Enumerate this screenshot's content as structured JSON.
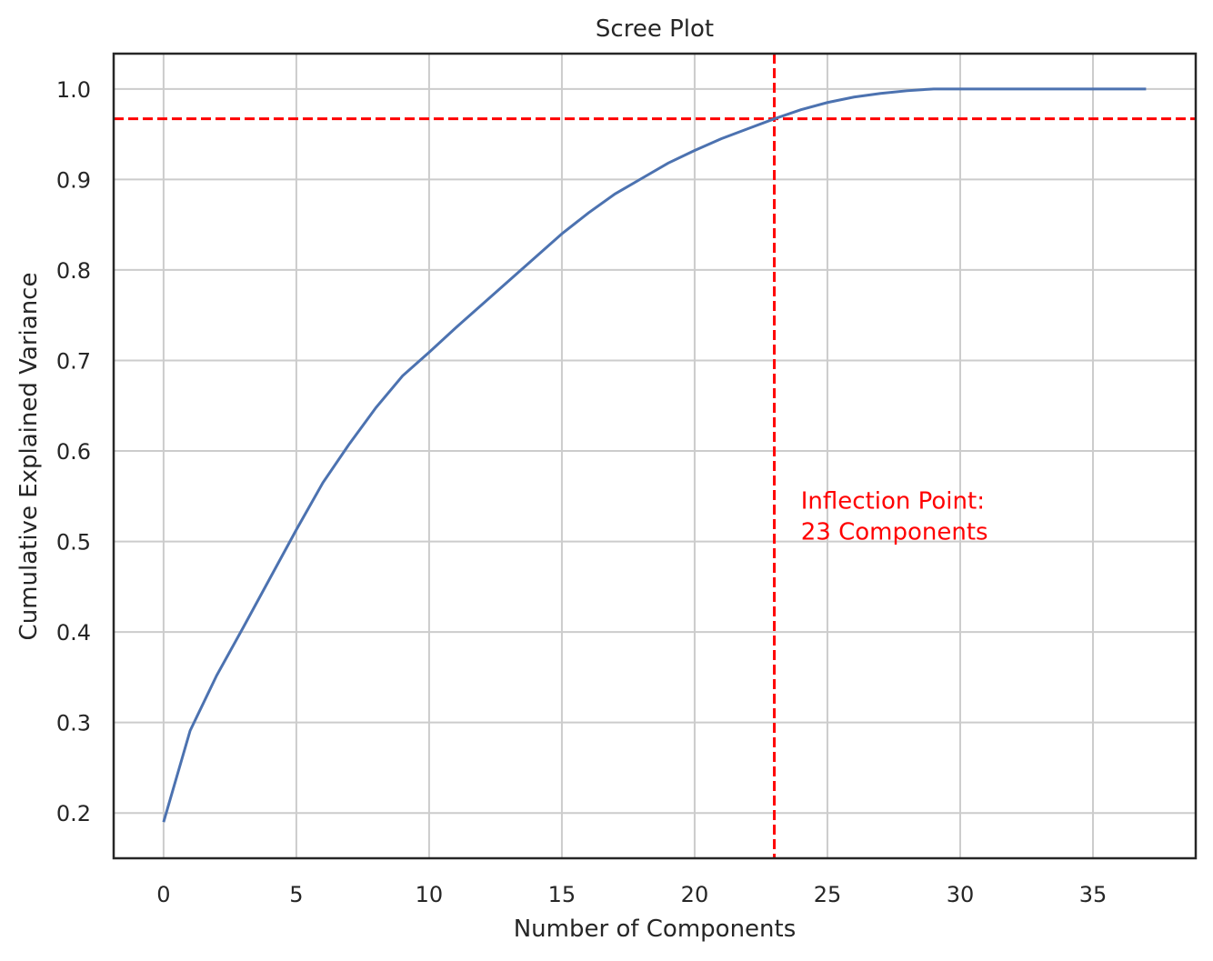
{
  "chart_data": {
    "type": "line",
    "title": "Scree Plot",
    "xlabel": "Number of Components",
    "ylabel": "Cumulative Explained Variance",
    "xlim": [
      -1.88,
      38.87
    ],
    "ylim": [
      0.15,
      1.039
    ],
    "xticks": [
      0,
      5,
      10,
      15,
      20,
      25,
      30,
      35
    ],
    "yticks": [
      0.2,
      0.3,
      0.4,
      0.5,
      0.6,
      0.7,
      0.8,
      0.9,
      1.0
    ],
    "ytick_labels": [
      "0.2",
      "0.3",
      "0.4",
      "0.5",
      "0.6",
      "0.7",
      "0.8",
      "0.9",
      "1.0"
    ],
    "grid": true,
    "series": [
      {
        "name": "cumulative variance",
        "color": "#4c72b0",
        "x": [
          0,
          1,
          2,
          3,
          4,
          5,
          6,
          7,
          8,
          9,
          10,
          11,
          12,
          13,
          14,
          15,
          16,
          17,
          18,
          19,
          20,
          21,
          22,
          23,
          24,
          25,
          26,
          27,
          28,
          29,
          30,
          31,
          32,
          33,
          34,
          35,
          36,
          37
        ],
        "y": [
          0.19,
          0.291,
          0.352,
          0.405,
          0.459,
          0.513,
          0.565,
          0.608,
          0.648,
          0.683,
          0.709,
          0.736,
          0.762,
          0.788,
          0.814,
          0.84,
          0.863,
          0.884,
          0.901,
          0.918,
          0.932,
          0.945,
          0.956,
          0.967,
          0.977,
          0.985,
          0.991,
          0.995,
          0.998,
          1.0,
          1.0,
          1.0,
          1.0,
          1.0,
          1.0,
          1.0,
          1.0,
          1.0
        ]
      }
    ],
    "reference_lines": {
      "vertical_x": 23,
      "horizontal_y": 0.967,
      "color": "#ff0000"
    },
    "annotation": {
      "line1": "Inflection Point:",
      "line2": "23 Components",
      "x": 24,
      "y": 0.5,
      "color": "#ff0000"
    }
  }
}
